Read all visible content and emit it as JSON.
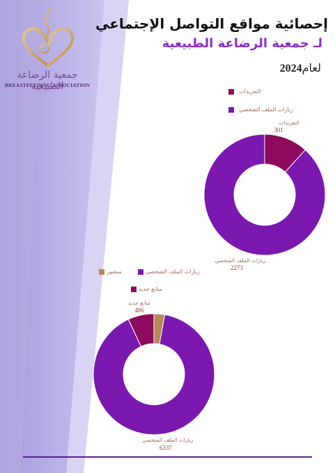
{
  "header": {
    "title": "إحصائية مواقع التواصل الإجتماعي",
    "subtitle": "لـ جمعية الرضاعة الطبيعية",
    "year_prefix": "لعام",
    "year": "2024"
  },
  "logo": {
    "arabic_name": "جمعية الرضاعة الطبيعية",
    "english_name": "BREASTFEEDING ASSOCIATION"
  },
  "colors": {
    "purple": "#7b18b0",
    "magenta": "#8e0a5e",
    "tan": "#b8875a",
    "footer_line": "#5b1f8f"
  },
  "chart_data": [
    {
      "type": "pie",
      "style": "donut",
      "legend_position": "top",
      "categories": [
        "التغريدات",
        "زيارات الملف الشخصي"
      ],
      "values": [
        301,
        2273
      ],
      "colors": [
        "#8e0a5e",
        "#7b18b0"
      ],
      "data_labels": [
        "التغريدات",
        "زيارات الملف الشخصي"
      ]
    },
    {
      "type": "pie",
      "style": "donut",
      "legend_position": "top",
      "categories": [
        "منشور",
        "زيارات الملف الشخصي",
        "متابع جديد"
      ],
      "values": [
        203,
        6337,
        486
      ],
      "colors": [
        "#b8875a",
        "#7b18b0",
        "#8e0a5e"
      ],
      "data_labels": [
        "",
        "زيارات الملف الشخصي",
        "متابع جديد"
      ],
      "value_labels": [
        "",
        "6337",
        "486"
      ]
    }
  ]
}
